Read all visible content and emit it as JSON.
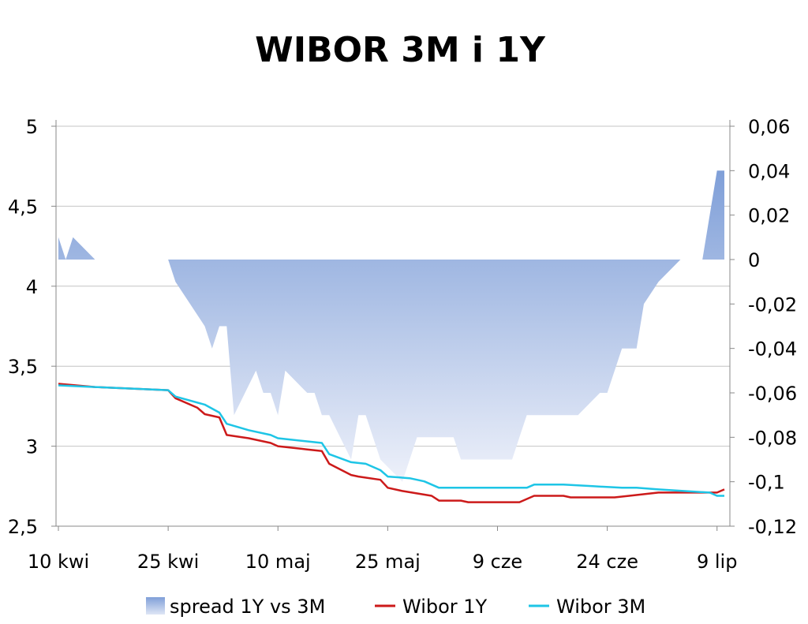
{
  "chart_data": {
    "type": "line",
    "title": "WIBOR 3M i 1Y",
    "x": {
      "start": "2013-04-10",
      "end": "2013-07-10",
      "tick_labels": [
        "10 kwi",
        "25 kwi",
        "10 maj",
        "25 maj",
        "9 cze",
        "24 cze",
        "9 lip"
      ],
      "tick_dates": [
        "2013-04-10",
        "2013-04-25",
        "2013-05-10",
        "2013-05-25",
        "2013-06-09",
        "2013-06-24",
        "2013-07-09"
      ]
    },
    "y_left": {
      "min": 2.5,
      "max": 5,
      "step": 0.5,
      "tick_labels": [
        "2,5",
        "3",
        "3,5",
        "4",
        "4,5",
        "5"
      ]
    },
    "y_right": {
      "min": -0.12,
      "max": 0.06,
      "step": 0.02,
      "tick_labels": [
        "-0,12",
        "-0,1",
        "-0,08",
        "-0,06",
        "-0,04",
        "-0,02",
        "0",
        "0,02",
        "0,04",
        "0,06"
      ]
    },
    "grid": true,
    "legend_position": "bottom",
    "series": [
      {
        "name": "spread 1Y vs 3M",
        "type": "area",
        "axis": "right",
        "color": "#7f9fd8",
        "points": [
          [
            "2013-04-10",
            0.01
          ],
          [
            "2013-04-11",
            0.0
          ],
          [
            "2013-04-12",
            0.01
          ],
          [
            "2013-04-15",
            0.0
          ],
          [
            "2013-04-25",
            0.0
          ],
          [
            "2013-04-26",
            -0.01
          ],
          [
            "2013-04-30",
            -0.03
          ],
          [
            "2013-05-01",
            -0.04
          ],
          [
            "2013-05-02",
            -0.03
          ],
          [
            "2013-05-03",
            -0.03
          ],
          [
            "2013-05-04",
            -0.07
          ],
          [
            "2013-05-07",
            -0.05
          ],
          [
            "2013-05-08",
            -0.06
          ],
          [
            "2013-05-09",
            -0.06
          ],
          [
            "2013-05-10",
            -0.07
          ],
          [
            "2013-05-11",
            -0.05
          ],
          [
            "2013-05-14",
            -0.06
          ],
          [
            "2013-05-15",
            -0.06
          ],
          [
            "2013-05-16",
            -0.07
          ],
          [
            "2013-05-17",
            -0.07
          ],
          [
            "2013-05-20",
            -0.09
          ],
          [
            "2013-05-21",
            -0.07
          ],
          [
            "2013-05-22",
            -0.07
          ],
          [
            "2013-05-24",
            -0.09
          ],
          [
            "2013-05-27",
            -0.1
          ],
          [
            "2013-05-29",
            -0.08
          ],
          [
            "2013-06-03",
            -0.08
          ],
          [
            "2013-06-04",
            -0.09
          ],
          [
            "2013-06-11",
            -0.09
          ],
          [
            "2013-06-12",
            -0.08
          ],
          [
            "2013-06-13",
            -0.07
          ],
          [
            "2013-06-20",
            -0.07
          ],
          [
            "2013-06-23",
            -0.06
          ],
          [
            "2013-06-24",
            -0.06
          ],
          [
            "2013-06-26",
            -0.04
          ],
          [
            "2013-06-28",
            -0.04
          ],
          [
            "2013-06-29",
            -0.02
          ],
          [
            "2013-07-01",
            -0.01
          ],
          [
            "2013-07-04",
            0.0
          ],
          [
            "2013-07-07",
            0.0
          ],
          [
            "2013-07-09",
            0.04
          ],
          [
            "2013-07-10",
            0.04
          ]
        ]
      },
      {
        "name": "Wibor 1Y",
        "type": "line",
        "axis": "left",
        "color": "#cc1a1a",
        "points": [
          [
            "2013-04-10",
            3.39
          ],
          [
            "2013-04-15",
            3.37
          ],
          [
            "2013-04-25",
            3.35
          ],
          [
            "2013-04-26",
            3.3
          ],
          [
            "2013-04-29",
            3.24
          ],
          [
            "2013-04-30",
            3.2
          ],
          [
            "2013-05-02",
            3.18
          ],
          [
            "2013-05-03",
            3.07
          ],
          [
            "2013-05-06",
            3.05
          ],
          [
            "2013-05-09",
            3.02
          ],
          [
            "2013-05-10",
            3.0
          ],
          [
            "2013-05-14",
            2.98
          ],
          [
            "2013-05-16",
            2.97
          ],
          [
            "2013-05-17",
            2.89
          ],
          [
            "2013-05-20",
            2.82
          ],
          [
            "2013-05-21",
            2.81
          ],
          [
            "2013-05-24",
            2.79
          ],
          [
            "2013-05-25",
            2.74
          ],
          [
            "2013-05-27",
            2.72
          ],
          [
            "2013-05-31",
            2.69
          ],
          [
            "2013-06-01",
            2.66
          ],
          [
            "2013-06-04",
            2.66
          ],
          [
            "2013-06-05",
            2.65
          ],
          [
            "2013-06-12",
            2.65
          ],
          [
            "2013-06-14",
            2.69
          ],
          [
            "2013-06-18",
            2.69
          ],
          [
            "2013-06-19",
            2.68
          ],
          [
            "2013-06-25",
            2.68
          ],
          [
            "2013-06-27",
            2.69
          ],
          [
            "2013-07-01",
            2.71
          ],
          [
            "2013-07-09",
            2.71
          ],
          [
            "2013-07-10",
            2.73
          ]
        ]
      },
      {
        "name": "Wibor 3M",
        "type": "line",
        "axis": "left",
        "color": "#1ec5e6",
        "points": [
          [
            "2013-04-10",
            3.38
          ],
          [
            "2013-04-15",
            3.37
          ],
          [
            "2013-04-25",
            3.35
          ],
          [
            "2013-04-26",
            3.31
          ],
          [
            "2013-04-30",
            3.26
          ],
          [
            "2013-05-02",
            3.21
          ],
          [
            "2013-05-03",
            3.14
          ],
          [
            "2013-05-06",
            3.1
          ],
          [
            "2013-05-09",
            3.07
          ],
          [
            "2013-05-10",
            3.05
          ],
          [
            "2013-05-14",
            3.03
          ],
          [
            "2013-05-16",
            3.02
          ],
          [
            "2013-05-17",
            2.95
          ],
          [
            "2013-05-20",
            2.9
          ],
          [
            "2013-05-22",
            2.89
          ],
          [
            "2013-05-24",
            2.85
          ],
          [
            "2013-05-25",
            2.81
          ],
          [
            "2013-05-28",
            2.8
          ],
          [
            "2013-05-30",
            2.78
          ],
          [
            "2013-06-01",
            2.74
          ],
          [
            "2013-06-13",
            2.74
          ],
          [
            "2013-06-14",
            2.76
          ],
          [
            "2013-06-18",
            2.76
          ],
          [
            "2013-06-22",
            2.75
          ],
          [
            "2013-06-26",
            2.74
          ],
          [
            "2013-06-28",
            2.74
          ],
          [
            "2013-07-01",
            2.73
          ],
          [
            "2013-07-08",
            2.71
          ],
          [
            "2013-07-09",
            2.69
          ],
          [
            "2013-07-10",
            2.69
          ]
        ]
      }
    ]
  }
}
